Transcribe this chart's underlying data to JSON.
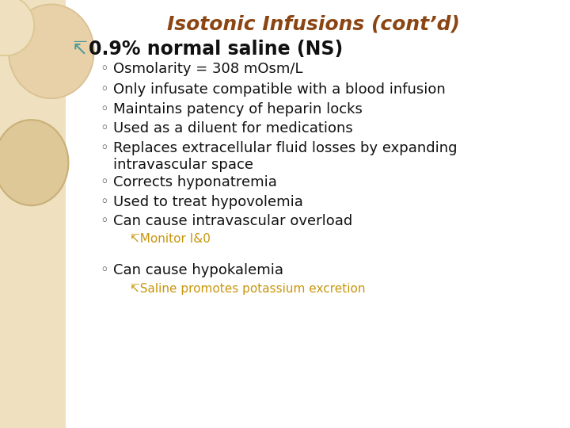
{
  "title": "Isotonic Infusions (cont’d)",
  "title_color": "#8B4513",
  "title_fontsize": 18,
  "title_style": "italic",
  "title_weight": "bold",
  "background_color": "#FFFFFF",
  "left_panel_color": "#EFE0C0",
  "bullet_header_text": "0.9% normal saline (NS)",
  "bullet_header_symbol": "↸",
  "bullet_header_symbol_color": "#4A9A9A",
  "bullet_header_fontsize": 17,
  "bullet_header_color": "#111111",
  "bullet_header_weight": "bold",
  "bullet_symbol": "◦",
  "bullet_color": "#444444",
  "bullet_fontsize": 13,
  "bullets": [
    "Osmolarity = 308 mOsm/L",
    "Only infusate compatible with a blood infusion",
    "Maintains patency of heparin locks",
    "Used as a diluent for medications",
    "Replaces extracellular fluid losses by expanding\nintravascular space",
    "Corrects hyponatremia",
    "Used to treat hypovolemia",
    "Can cause intravascular overload"
  ],
  "sub_bullet_monitor": "↸Monitor I&0",
  "last_bullet": "Can cause hypokalemia",
  "sub_bullet_last": "↸Saline promotes potassium excretion",
  "sub_bullet_color": "#C8960C",
  "sub_bullet_fontsize": 11,
  "text_color": "#111111"
}
